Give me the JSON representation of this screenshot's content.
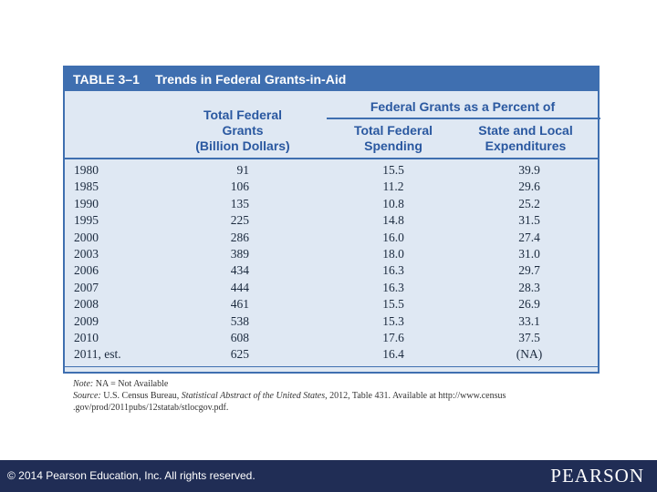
{
  "table": {
    "number": "TABLE 3–1",
    "title": "Trends in Federal Grants-in-Aid",
    "group_header": "Federal Grants as a Percent of",
    "columns": [
      {
        "line1": "Total Federal",
        "line2": "Grants",
        "line3": "(Billion Dollars)"
      },
      {
        "line1": "Total Federal",
        "line2": "Spending"
      },
      {
        "line1": "State and Local",
        "line2": "Expenditures"
      }
    ],
    "rows": [
      {
        "year": "1980",
        "grants": "91",
        "spending": "15.5",
        "state": "39.9"
      },
      {
        "year": "1985",
        "grants": "106",
        "spending": "11.2",
        "state": "29.6"
      },
      {
        "year": "1990",
        "grants": "135",
        "spending": "10.8",
        "state": "25.2"
      },
      {
        "year": "1995",
        "grants": "225",
        "spending": "14.8",
        "state": "31.5"
      },
      {
        "year": "2000",
        "grants": "286",
        "spending": "16.0",
        "state": "27.4"
      },
      {
        "year": "2003",
        "grants": "389",
        "spending": "18.0",
        "state": "31.0"
      },
      {
        "year": "2006",
        "grants": "434",
        "spending": "16.3",
        "state": "29.7"
      },
      {
        "year": "2007",
        "grants": "444",
        "spending": "16.3",
        "state": "28.3"
      },
      {
        "year": "2008",
        "grants": "461",
        "spending": "15.5",
        "state": "26.9"
      },
      {
        "year": "2009",
        "grants": "538",
        "spending": "15.3",
        "state": "33.1"
      },
      {
        "year": "2010",
        "grants": "608",
        "spending": "17.6",
        "state": "37.5"
      },
      {
        "year": "2011, est.",
        "grants": "625",
        "spending": "16.4",
        "state": "(NA)"
      }
    ]
  },
  "notes": {
    "note_label": "Note:",
    "note_text": "NA = Not Available",
    "source_label": "Source:",
    "source_pre": "U.S. Census Bureau,",
    "source_title": "Statistical Abstract of the United States",
    "source_post": ", 2012, Table 431. Available at http://www.census",
    "source_line2": ".gov/prod/2011pubs/12statab/stlocgov.pdf."
  },
  "footer": {
    "copyright": "© 2014  Pearson Education, Inc. All rights reserved.",
    "logo": "PEARSON"
  },
  "colors": {
    "accent": "#3f6fb0",
    "table_bg": "#dfe8f3",
    "footer_bg": "#202d55"
  }
}
